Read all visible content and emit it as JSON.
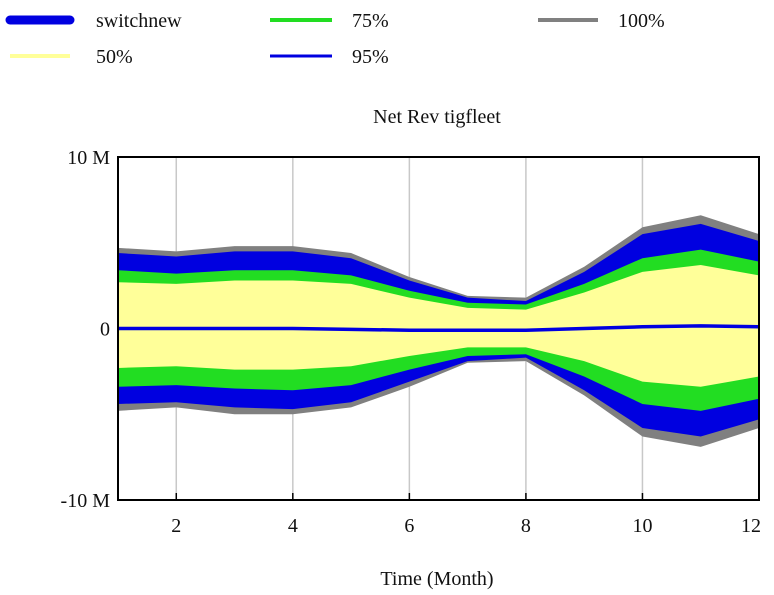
{
  "chart_data": {
    "type": "area",
    "title": "Net Rev tigfleet",
    "xlabel": "Time (Month)",
    "ylabel": "",
    "xlim": [
      1,
      12
    ],
    "ylim": [
      -10000000,
      10000000
    ],
    "x_ticks": [
      2,
      4,
      6,
      8,
      10,
      12
    ],
    "x_tick_labels": [
      "2",
      "4",
      "6",
      "8",
      "10",
      "12"
    ],
    "y_ticks": [
      10000000,
      0,
      -10000000
    ],
    "y_tick_labels": [
      "10 M",
      "0",
      "-10 M"
    ],
    "grid": {
      "vertical": true,
      "horizontal": false
    },
    "legend_position": "top",
    "legend": [
      {
        "name": "switchnew",
        "color": "#0000e0",
        "style": "thick-line"
      },
      {
        "name": "75%",
        "color": "#22dd22",
        "style": "line"
      },
      {
        "name": "100%",
        "color": "#808080",
        "style": "line"
      },
      {
        "name": "50%",
        "color": "#ffff99",
        "style": "line"
      },
      {
        "name": "95%",
        "color": "#0000e0",
        "style": "line"
      }
    ],
    "x": [
      1,
      2,
      3,
      4,
      5,
      6,
      7,
      8,
      9,
      10,
      11,
      12
    ],
    "bands": [
      {
        "name": "100%",
        "color": "#808080",
        "upper": [
          4700000.0,
          4500000.0,
          4800000.0,
          4800000.0,
          4400000.0,
          3000000.0,
          1900000.0,
          1800000.0,
          3600000.0,
          5900000.0,
          6600000.0,
          5500000.0
        ],
        "lower": [
          -4800000.0,
          -4600000.0,
          -5000000.0,
          -5000000.0,
          -4600000.0,
          -3400000.0,
          -2000000.0,
          -1900000.0,
          -3900000.0,
          -6300000.0,
          -6900000.0,
          -5800000.0
        ]
      },
      {
        "name": "95%",
        "color": "#0000e0",
        "upper": [
          4400000.0,
          4200000.0,
          4500000.0,
          4500000.0,
          4100000.0,
          2800000.0,
          1800000.0,
          1600000.0,
          3300000.0,
          5500000.0,
          6100000.0,
          5100000.0
        ],
        "lower": [
          -4400000.0,
          -4300000.0,
          -4600000.0,
          -4700000.0,
          -4300000.0,
          -3100000.0,
          -1900000.0,
          -1700000.0,
          -3600000.0,
          -5800000.0,
          -6300000.0,
          -5300000.0
        ]
      },
      {
        "name": "75%",
        "color": "#22dd22",
        "upper": [
          3400000.0,
          3200000.0,
          3400000.0,
          3400000.0,
          3100000.0,
          2200000.0,
          1500000.0,
          1400000.0,
          2600000.0,
          4100000.0,
          4600000.0,
          3900000.0
        ],
        "lower": [
          -3400000.0,
          -3300000.0,
          -3500000.0,
          -3600000.0,
          -3300000.0,
          -2400000.0,
          -1600000.0,
          -1500000.0,
          -2800000.0,
          -4400000.0,
          -4800000.0,
          -4100000.0
        ]
      },
      {
        "name": "50%",
        "color": "#ffff99",
        "upper": [
          2700000.0,
          2600000.0,
          2800000.0,
          2800000.0,
          2600000.0,
          1800000.0,
          1200000.0,
          1100000.0,
          2100000.0,
          3300000.0,
          3700000.0,
          3100000.0
        ],
        "lower": [
          -2300000.0,
          -2200000.0,
          -2400000.0,
          -2400000.0,
          -2200000.0,
          -1600000.0,
          -1100000.0,
          -1100000.0,
          -1900000.0,
          -3100000.0,
          -3400000.0,
          -2800000.0
        ]
      }
    ],
    "series": [
      {
        "name": "switchnew",
        "color": "#0000e0",
        "values": [
          0.0,
          0.0,
          0.0,
          0.0,
          -50000.0,
          -100000.0,
          -100000.0,
          -100000.0,
          0.0,
          100000.0,
          150000.0,
          100000.0
        ]
      }
    ]
  }
}
